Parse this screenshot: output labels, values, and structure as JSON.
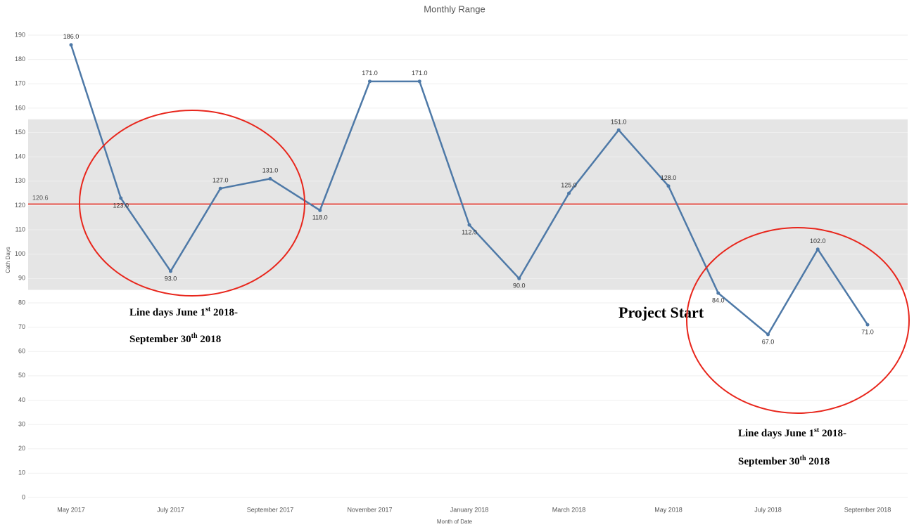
{
  "chart_data": {
    "type": "line",
    "title": "Monthly Range",
    "x_label": "Month of Date",
    "y_label": "Cath Days",
    "categories": [
      "May 2017",
      null,
      "July 2017",
      null,
      "September 2017",
      null,
      "November 2017",
      null,
      "January 2018",
      null,
      "March 2018",
      null,
      "May 2018",
      null,
      "July 2018",
      null,
      "September 2018"
    ],
    "series": [
      {
        "name": "Cath Days",
        "color": "#4e79a7",
        "values": [
          186,
          123,
          93,
          127,
          131,
          118,
          171,
          171,
          112,
          90,
          125,
          151,
          128,
          84,
          67,
          102,
          71
        ],
        "value_labels": [
          "186.0",
          "123.0",
          "93.0",
          "127.0",
          "131.0",
          "118.0",
          "171.0",
          "171.0",
          "112.0",
          "90.0",
          "125.0",
          "151.0",
          "128.0",
          "84.0",
          "67.0",
          "102.0",
          "71.0"
        ]
      }
    ],
    "ylim": [
      0,
      195
    ],
    "yticks": [
      0,
      10,
      20,
      30,
      40,
      50,
      60,
      70,
      80,
      90,
      100,
      110,
      120,
      130,
      140,
      150,
      160,
      170,
      180,
      190
    ],
    "grid": true,
    "reference_line": {
      "value": 120.6,
      "label": "120.6",
      "color": "#e8261c"
    },
    "band": [
      85.3,
      155.4
    ],
    "annotations": [
      {
        "lines": [
          [
            "Line days June 1",
            "st",
            " 2018-"
          ],
          [
            "September 30",
            "th",
            " 2018"
          ]
        ]
      },
      {
        "text": "Project Start"
      },
      {
        "lines": [
          [
            "Line days June 1",
            "st",
            " 2018-"
          ],
          [
            "September 30",
            "th",
            " 2018"
          ]
        ]
      }
    ]
  }
}
